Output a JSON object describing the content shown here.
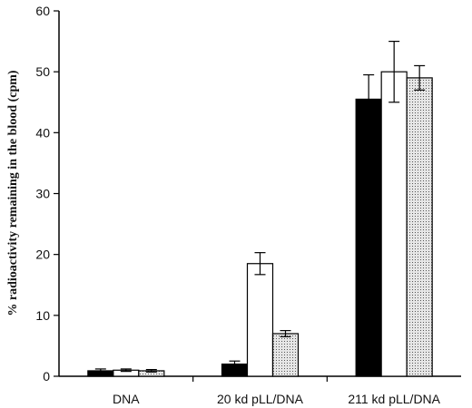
{
  "chart_data": {
    "type": "bar",
    "title": "",
    "xlabel": "",
    "ylabel": "% radioactivity remaining in the blood (cpm)",
    "ylim": [
      0,
      60
    ],
    "yticks": [
      0,
      10,
      20,
      30,
      40,
      50,
      60
    ],
    "categories": [
      "DNA",
      "20 kd pLL/DNA",
      "211 kd pLL/DNA"
    ],
    "series": [
      {
        "fill": "solid-black",
        "values": [
          0.9,
          2.0,
          45.5
        ],
        "errors": [
          0.3,
          0.5,
          4.0
        ]
      },
      {
        "fill": "white",
        "values": [
          1.0,
          18.5,
          50.0
        ],
        "errors": [
          0.2,
          1.8,
          5.0
        ]
      },
      {
        "fill": "dotted",
        "values": [
          0.9,
          7.0,
          49.0
        ],
        "errors": [
          0.2,
          0.5,
          2.0
        ]
      }
    ],
    "grid": false,
    "legend": "none"
  }
}
